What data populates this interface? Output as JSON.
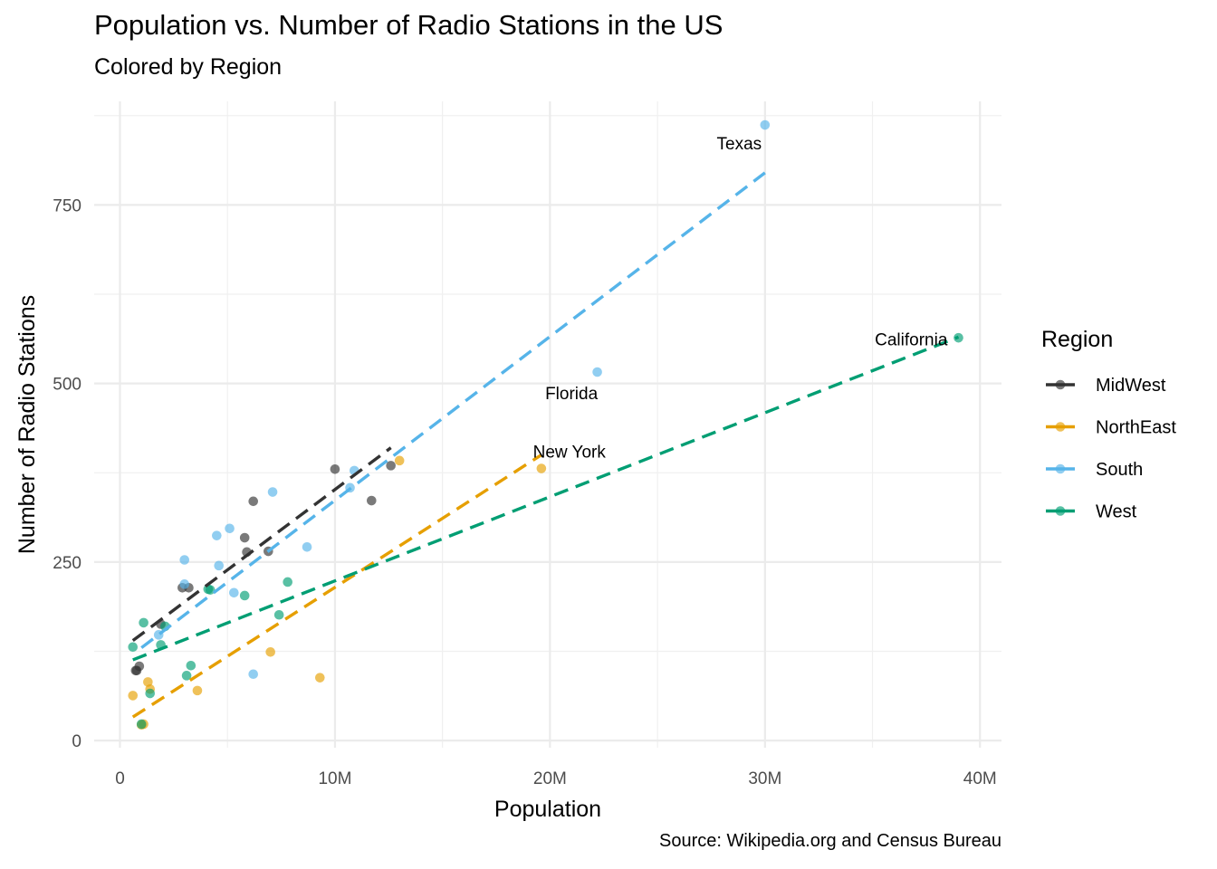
{
  "chart_data": {
    "type": "scatter",
    "title": "Population vs. Number of Radio Stations in the US",
    "subtitle": "Colored by Region",
    "caption": "Source: Wikipedia.org and Census Bureau",
    "xlabel": "Population",
    "ylabel": "Number of Radio Stations",
    "xlim": [
      -1200000,
      41000000
    ],
    "ylim": [
      -10,
      895
    ],
    "x_ticks": [
      0,
      10000000,
      20000000,
      30000000,
      40000000
    ],
    "x_tick_labels": [
      "0",
      "10M",
      "20M",
      "30M",
      "40M"
    ],
    "y_ticks": [
      0,
      250,
      500,
      750
    ],
    "y_tick_labels": [
      "0",
      "250",
      "500",
      "750"
    ],
    "grid": true,
    "legend_title": "Region",
    "legend_position": "right",
    "series": [
      {
        "name": "MidWest",
        "color": "#333333",
        "points": [
          [
            730000,
            98
          ],
          [
            780000,
            98
          ],
          [
            900000,
            104
          ],
          [
            1900000,
            163
          ],
          [
            2900000,
            214
          ],
          [
            3200000,
            214
          ],
          [
            5800000,
            284
          ],
          [
            5900000,
            264
          ],
          [
            6200000,
            335
          ],
          [
            6900000,
            265
          ],
          [
            10000000,
            380
          ],
          [
            11700000,
            336
          ],
          [
            12600000,
            385
          ]
        ],
        "trend": [
          [
            600000,
            140
          ],
          [
            12600000,
            410
          ]
        ]
      },
      {
        "name": "NorthEast",
        "color": "#E69F00",
        "points": [
          [
            600000,
            63
          ],
          [
            1000000,
            22
          ],
          [
            1100000,
            23
          ],
          [
            1300000,
            82
          ],
          [
            1400000,
            72
          ],
          [
            3600000,
            70
          ],
          [
            7000000,
            124
          ],
          [
            9300000,
            88
          ],
          [
            13000000,
            392
          ],
          [
            19600000,
            381
          ]
        ],
        "trend": [
          [
            600000,
            33
          ],
          [
            19600000,
            400
          ]
        ]
      },
      {
        "name": "South",
        "color": "#56B4E9",
        "points": [
          [
            1800000,
            148
          ],
          [
            3000000,
            219
          ],
          [
            3000000,
            253
          ],
          [
            4500000,
            287
          ],
          [
            4600000,
            245
          ],
          [
            5100000,
            297
          ],
          [
            5300000,
            207
          ],
          [
            6200000,
            93
          ],
          [
            7100000,
            348
          ],
          [
            8700000,
            271
          ],
          [
            10700000,
            354
          ],
          [
            10900000,
            378
          ],
          [
            22200000,
            516
          ],
          [
            30000000,
            862
          ]
        ],
        "trend": [
          [
            1000000,
            130
          ],
          [
            30000000,
            795
          ]
        ]
      },
      {
        "name": "West",
        "color": "#009E73",
        "points": [
          [
            600000,
            131
          ],
          [
            1000000,
            23
          ],
          [
            1100000,
            165
          ],
          [
            1400000,
            66
          ],
          [
            1900000,
            134
          ],
          [
            2100000,
            160
          ],
          [
            3100000,
            91
          ],
          [
            3300000,
            105
          ],
          [
            4100000,
            212
          ],
          [
            4200000,
            211
          ],
          [
            5800000,
            203
          ],
          [
            7400000,
            176
          ],
          [
            7800000,
            222
          ],
          [
            39000000,
            564
          ]
        ],
        "trend": [
          [
            600000,
            113
          ],
          [
            39000000,
            565
          ]
        ]
      }
    ],
    "annotations": [
      {
        "text": "Texas",
        "x": 28800000,
        "y": 837
      },
      {
        "text": "California",
        "x": 36800000,
        "y": 562
      },
      {
        "text": "Florida",
        "x": 21000000,
        "y": 487
      },
      {
        "text": "New York",
        "x": 20900000,
        "y": 405
      }
    ]
  }
}
